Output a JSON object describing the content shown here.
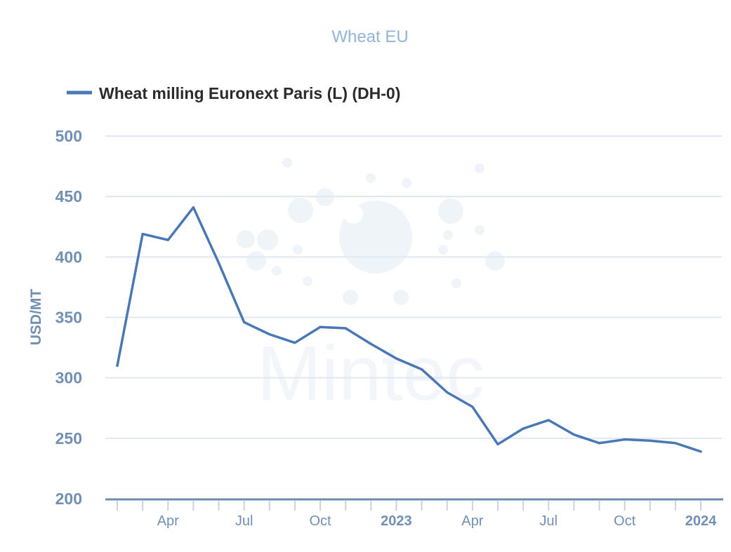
{
  "chart_data": {
    "type": "line",
    "title": "Wheat EU",
    "xlabel": "",
    "ylabel": "USD/MT",
    "ylim": [
      200,
      500
    ],
    "yticks": [
      "200",
      "250",
      "300",
      "350",
      "400",
      "450",
      "500"
    ],
    "grid": true,
    "legend_placement": "top-left",
    "x": [
      "2022-02",
      "2022-03",
      "2022-04",
      "2022-05",
      "2022-06",
      "2022-07",
      "2022-08",
      "2022-09",
      "2022-10",
      "2022-11",
      "2022-12",
      "2023-01",
      "2023-02",
      "2023-03",
      "2023-04",
      "2023-05",
      "2023-06",
      "2023-07",
      "2023-08",
      "2023-09",
      "2023-10",
      "2023-11",
      "2023-12",
      "2024-01"
    ],
    "xtick_labels": [
      {
        "index": 2,
        "label": "Apr",
        "year": false
      },
      {
        "index": 5,
        "label": "Jul",
        "year": false
      },
      {
        "index": 8,
        "label": "Oct",
        "year": false
      },
      {
        "index": 11,
        "label": "2023",
        "year": true
      },
      {
        "index": 14,
        "label": "Apr",
        "year": false
      },
      {
        "index": 17,
        "label": "Jul",
        "year": false
      },
      {
        "index": 20,
        "label": "Oct",
        "year": false
      },
      {
        "index": 23,
        "label": "2024",
        "year": true
      }
    ],
    "series": [
      {
        "name": "Wheat milling Euronext Paris (L) (DH-0)",
        "color": "#4a78b5",
        "values": [
          310,
          419,
          414,
          441,
          395,
          346,
          336,
          329,
          342,
          341,
          328,
          316,
          307,
          288,
          276,
          245,
          258,
          265,
          253,
          246,
          249,
          248,
          246,
          239
        ]
      }
    ],
    "watermark": "Mintec"
  }
}
